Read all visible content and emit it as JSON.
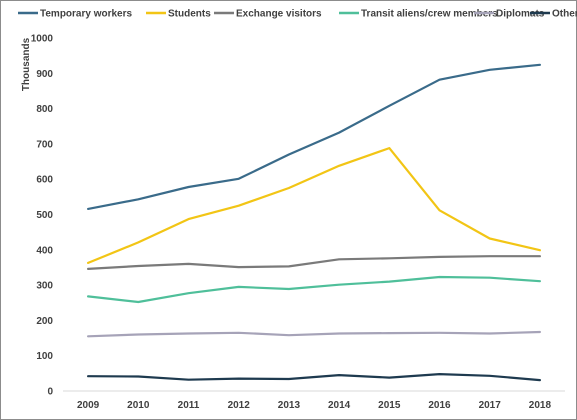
{
  "chart_data": {
    "type": "line",
    "title": "",
    "xlabel": "",
    "ylabel": "Thousands",
    "x": [
      "2009",
      "2010",
      "2011",
      "2012",
      "2013",
      "2014",
      "2015",
      "2016",
      "2017",
      "2018"
    ],
    "ylim": [
      0,
      1000
    ],
    "yticks": [
      "0",
      "100",
      "200",
      "300",
      "400",
      "500",
      "600",
      "700",
      "800",
      "900",
      "1000"
    ],
    "grid": false,
    "legend_position": "top",
    "series": [
      {
        "name": "Temporary workers",
        "color": "#3a6b8a",
        "values": [
          516,
          543,
          578,
          601,
          670,
          732,
          808,
          882,
          910,
          924
        ]
      },
      {
        "name": "Students",
        "color": "#f2c515",
        "values": [
          363,
          421,
          487,
          525,
          575,
          638,
          688,
          512,
          432,
          399
        ]
      },
      {
        "name": "Exchange visitors",
        "color": "#7a7a7a",
        "values": [
          346,
          354,
          360,
          351,
          353,
          373,
          376,
          380,
          382,
          382
        ]
      },
      {
        "name": "Transit aliens/crew members",
        "color": "#4fbf9a",
        "values": [
          268,
          252,
          277,
          295,
          289,
          301,
          310,
          323,
          321,
          311
        ]
      },
      {
        "name": "Diplomats",
        "color": "#a6a3b8",
        "values": [
          155,
          160,
          163,
          165,
          158,
          163,
          164,
          165,
          163,
          167
        ]
      },
      {
        "name": "Other",
        "color": "#1e3a4f",
        "values": [
          42,
          41,
          32,
          35,
          34,
          45,
          38,
          48,
          43,
          31
        ]
      }
    ]
  }
}
